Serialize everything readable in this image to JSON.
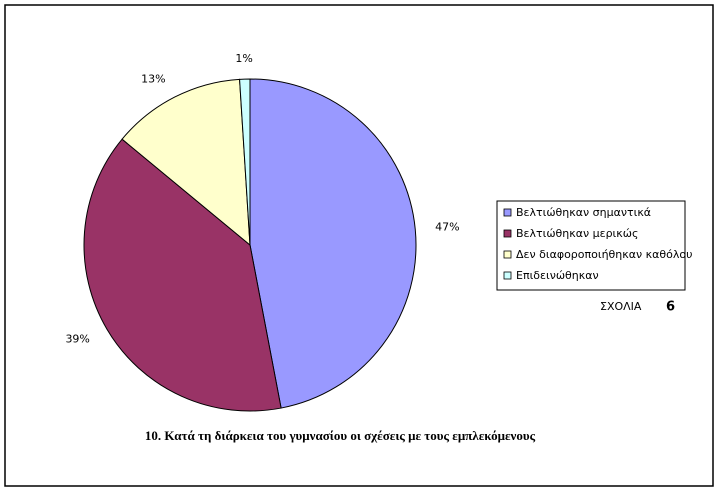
{
  "chart_data": {
    "type": "pie",
    "title": "10. Κατά τη διάρκεια του γυμνασίου οι σχέσεις με τους εμπλεκόμενους",
    "categories": [
      "Βελτιώθηκαν σημαντικά",
      "Βελτιώθηκαν μερικώς",
      "Δεν διαφοροποιήθηκαν καθόλου",
      "Επιδεινώθηκαν"
    ],
    "values": [
      47,
      39,
      13,
      1
    ],
    "value_labels": [
      "47%",
      "39%",
      "13%",
      "1%"
    ],
    "colors": [
      "#9999ff",
      "#993366",
      "#ffffcc",
      "#ccffff"
    ],
    "legend": "right",
    "note": {
      "label": "ΣΧΟΛΙΑ",
      "value": 6
    }
  }
}
